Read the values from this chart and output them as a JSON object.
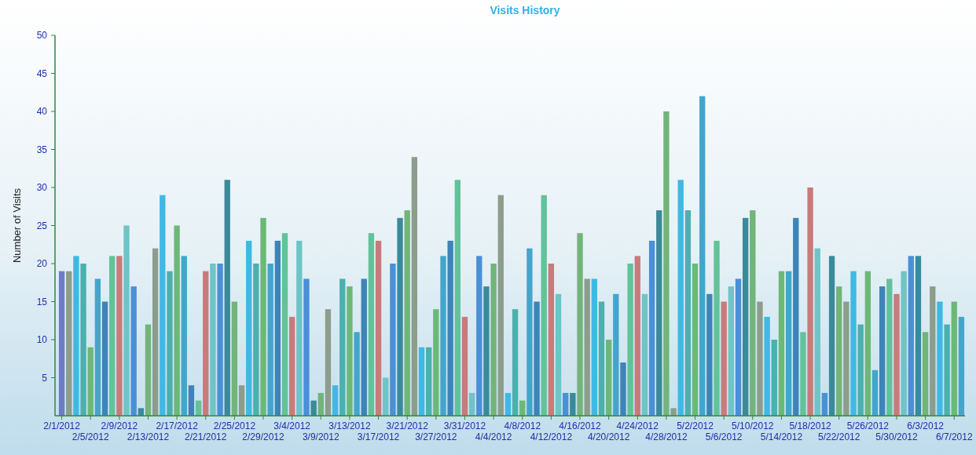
{
  "chart_data": {
    "type": "bar",
    "title": "Visits History",
    "ylabel": "Number of Visits",
    "categories": [
      "2/1/2012",
      null,
      null,
      null,
      "2/5/2012",
      null,
      null,
      null,
      "2/9/2012",
      null,
      null,
      null,
      "2/13/2012",
      null,
      null,
      null,
      "2/17/2012",
      null,
      null,
      null,
      "2/21/2012",
      null,
      null,
      null,
      "2/25/2012",
      null,
      null,
      null,
      "2/29/2012",
      null,
      null,
      null,
      "3/4/2012",
      null,
      null,
      null,
      "3/9/2012",
      null,
      null,
      null,
      "3/13/2012",
      null,
      null,
      null,
      "3/17/2012",
      null,
      null,
      null,
      "3/21/2012",
      null,
      null,
      null,
      "3/27/2012",
      null,
      null,
      null,
      "3/31/2012",
      null,
      null,
      null,
      "4/4/2012",
      null,
      null,
      null,
      "4/8/2012",
      null,
      null,
      null,
      "4/12/2012",
      null,
      null,
      null,
      "4/16/2012",
      null,
      null,
      null,
      "4/20/2012",
      null,
      null,
      null,
      "4/24/2012",
      null,
      null,
      null,
      "4/28/2012",
      null,
      null,
      null,
      "5/2/2012",
      null,
      null,
      null,
      "5/6/2012",
      null,
      null,
      null,
      "5/10/2012",
      null,
      null,
      null,
      "5/14/2012",
      null,
      null,
      null,
      "5/18/2012",
      null,
      null,
      null,
      "5/22/2012",
      null,
      null,
      null,
      "5/26/2012",
      null,
      null,
      null,
      "5/30/2012",
      null,
      null,
      null,
      "6/3/2012",
      null,
      null,
      null,
      "6/7/2012",
      null
    ],
    "values": [
      19,
      19,
      21,
      20,
      9,
      18,
      15,
      21,
      21,
      25,
      17,
      1,
      12,
      22,
      29,
      19,
      25,
      21,
      4,
      2,
      19,
      20,
      20,
      31,
      15,
      4,
      23,
      20,
      26,
      20,
      23,
      24,
      13,
      23,
      18,
      2,
      3,
      14,
      4,
      18,
      17,
      11,
      18,
      24,
      23,
      5,
      20,
      26,
      27,
      34,
      9,
      9,
      14,
      21,
      23,
      31,
      13,
      3,
      21,
      17,
      20,
      29,
      3,
      14,
      2,
      22,
      15,
      29,
      20,
      16,
      3,
      3,
      24,
      18,
      18,
      15,
      10,
      16,
      7,
      20,
      21,
      16,
      23,
      27,
      40,
      1,
      31,
      27,
      20,
      42,
      16,
      23,
      15,
      17,
      18,
      26,
      27,
      15,
      13,
      10,
      19,
      19,
      26,
      11,
      30,
      22,
      3,
      21,
      17,
      15,
      19,
      12,
      19,
      6,
      17,
      18,
      16,
      19,
      21,
      21,
      11,
      17,
      15,
      12,
      15,
      13
    ],
    "colors": [
      "#6e7cc8",
      "#8d9d8c",
      "#3fb9e3",
      "#4bb0ae",
      "#6cb877",
      "#44a5cc",
      "#3d84b8",
      "#62c29a",
      "#c97a7a",
      "#6ec4c6",
      "#4a8fd8",
      "#3a8a9a",
      "#72b47a",
      "#8d9d8c",
      "#3fb9e3",
      "#4bb0ae",
      "#6cb877",
      "#44a5cc",
      "#3d84b8",
      "#62c29a",
      "#c97a7a",
      "#6ec4c6",
      "#4a8fd8",
      "#3a8a9a",
      "#72b47a",
      "#8d9d8c",
      "#3fb9e3",
      "#4bb0ae",
      "#6cb877",
      "#44a5cc",
      "#3d84b8",
      "#62c29a",
      "#c97a7a",
      "#6ec4c6",
      "#4a8fd8",
      "#3a8a9a",
      "#72b47a",
      "#8d9d8c",
      "#3fb9e3",
      "#4bb0ae",
      "#6cb877",
      "#44a5cc",
      "#3d84b8",
      "#62c29a",
      "#c97a7a",
      "#6ec4c6",
      "#4a8fd8",
      "#3a8a9a",
      "#72b47a",
      "#8d9d8c",
      "#3fb9e3",
      "#4bb0ae",
      "#6cb877",
      "#44a5cc",
      "#3d84b8",
      "#62c29a",
      "#c97a7a",
      "#6ec4c6",
      "#4a8fd8",
      "#3a8a9a",
      "#72b47a",
      "#8d9d8c",
      "#3fb9e3",
      "#4bb0ae",
      "#6cb877",
      "#44a5cc",
      "#3d84b8",
      "#62c29a",
      "#c97a7a",
      "#6ec4c6",
      "#4a8fd8",
      "#3a8a9a",
      "#72b47a",
      "#8d9d8c",
      "#3fb9e3",
      "#4bb0ae",
      "#6cb877",
      "#44a5cc",
      "#3d84b8",
      "#62c29a",
      "#c97a7a",
      "#6ec4c6",
      "#4a8fd8",
      "#3a8a9a",
      "#72b47a",
      "#8d9d8c",
      "#3fb9e3",
      "#4bb0ae",
      "#6cb877",
      "#44a5cc",
      "#3d84b8",
      "#62c29a",
      "#c97a7a",
      "#6ec4c6",
      "#4a8fd8",
      "#3a8a9a",
      "#72b47a",
      "#8d9d8c",
      "#3fb9e3",
      "#4bb0ae",
      "#6cb877",
      "#44a5cc",
      "#3d84b8",
      "#62c29a",
      "#c97a7a",
      "#6ec4c6",
      "#4a8fd8",
      "#3a8a9a",
      "#72b47a",
      "#8d9d8c",
      "#3fb9e3",
      "#4bb0ae",
      "#6cb877",
      "#44a5cc",
      "#3d84b8",
      "#62c29a",
      "#c97a7a",
      "#6ec4c6",
      "#4a8fd8",
      "#3a8a9a",
      "#72b47a",
      "#8d9d8c",
      "#3fb9e3",
      "#4bb0ae",
      "#6cb877",
      "#44a5cc"
    ],
    "ylim": [
      0,
      50
    ],
    "yticks": [
      5,
      10,
      15,
      20,
      25,
      30,
      35,
      40,
      45,
      50
    ],
    "grid": false
  }
}
